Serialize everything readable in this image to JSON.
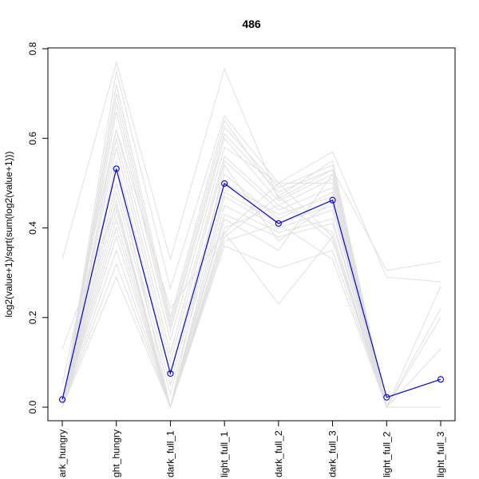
{
  "chart_data": {
    "type": "line",
    "title": "486",
    "xlabel": "",
    "ylabel": "log2(value+1)/sqrt(sum(log2(value+1)))",
    "ylim": [
      0,
      0.8
    ],
    "y_ticks": [
      0.0,
      0.2,
      0.4,
      0.6,
      0.8
    ],
    "y_tick_labels": [
      "0.0",
      "0.2",
      "0.4",
      "0.6",
      "0.8"
    ],
    "categories": [
      "dark_hungry",
      "light_hungry",
      "dark_full_1",
      "light_full_1",
      "dark_full_2",
      "dark_full_3",
      "light_full_2",
      "light_full_3"
    ],
    "category_labels_visible": [
      "ark_hungry",
      "ght_hungry",
      "dark_full_1",
      "light_full_1",
      "dark_full_2",
      "dark_full_3",
      "light_full_2",
      "light_full_3"
    ],
    "highlight_color": "#0000ff",
    "background_color": "#e0e0e0",
    "series": [
      {
        "values": [
          0.017,
          0.532,
          0.075,
          0.499,
          0.41,
          0.462,
          0.022,
          0.062
        ],
        "highlight": true
      },
      {
        "values": [
          0.33,
          0.77,
          0.33,
          0.755,
          0.465,
          0.53,
          0.305,
          0.325
        ]
      },
      {
        "values": [
          0.0,
          0.75,
          0.265,
          0.65,
          0.5,
          0.57,
          0.29,
          0.28
        ]
      },
      {
        "values": [
          0.0,
          0.72,
          0.2,
          0.64,
          0.47,
          0.55,
          0.0,
          0.22
        ]
      },
      {
        "values": [
          0.0,
          0.7,
          0.19,
          0.625,
          0.49,
          0.54,
          0.0,
          0.2
        ]
      },
      {
        "values": [
          0.0,
          0.68,
          0.18,
          0.61,
          0.48,
          0.53,
          0.0,
          0.0
        ]
      },
      {
        "values": [
          0.0,
          0.66,
          0.17,
          0.6,
          0.46,
          0.52,
          0.0,
          0.0
        ]
      },
      {
        "values": [
          0.0,
          0.62,
          0.15,
          0.58,
          0.5,
          0.5,
          0.0,
          0.0
        ]
      },
      {
        "values": [
          0.0,
          0.6,
          0.12,
          0.56,
          0.45,
          0.51,
          0.0,
          0.0
        ]
      },
      {
        "values": [
          0.0,
          0.58,
          0.1,
          0.55,
          0.44,
          0.49,
          0.0,
          0.0
        ]
      },
      {
        "values": [
          0.0,
          0.55,
          0.08,
          0.52,
          0.42,
          0.48,
          0.0,
          0.0
        ]
      },
      {
        "values": [
          0.0,
          0.5,
          0.05,
          0.5,
          0.43,
          0.47,
          0.0,
          0.0
        ]
      },
      {
        "values": [
          0.0,
          0.48,
          0.03,
          0.48,
          0.41,
          0.45,
          0.0,
          0.0
        ]
      },
      {
        "values": [
          0.0,
          0.46,
          0.0,
          0.47,
          0.4,
          0.44,
          0.0,
          0.0
        ]
      },
      {
        "values": [
          0.0,
          0.42,
          0.0,
          0.45,
          0.39,
          0.42,
          0.0,
          0.0
        ]
      },
      {
        "values": [
          0.0,
          0.4,
          0.0,
          0.43,
          0.38,
          0.41,
          0.0,
          0.0
        ]
      },
      {
        "values": [
          0.0,
          0.38,
          0.0,
          0.4,
          0.45,
          0.39,
          0.0,
          0.0
        ]
      },
      {
        "values": [
          0.0,
          0.35,
          0.0,
          0.39,
          0.23,
          0.38,
          0.0,
          0.0
        ]
      },
      {
        "values": [
          0.0,
          0.32,
          0.0,
          0.38,
          0.47,
          0.37,
          0.0,
          0.0
        ]
      },
      {
        "values": [
          0.0,
          0.29,
          0.0,
          0.36,
          0.31,
          0.35,
          0.0,
          0.0
        ]
      },
      {
        "values": [
          0.13,
          0.45,
          0.0,
          0.37,
          0.41,
          0.33,
          0.0,
          0.0
        ]
      },
      {
        "values": [
          0.05,
          0.62,
          0.22,
          0.39,
          0.5,
          0.38,
          0.0,
          0.13
        ]
      },
      {
        "values": [
          0.0,
          0.44,
          0.0,
          0.42,
          0.35,
          0.52,
          0.0,
          0.27
        ]
      },
      {
        "values": [
          0.0,
          0.53,
          0.0,
          0.54,
          0.37,
          0.46,
          0.0,
          0.0
        ]
      }
    ]
  }
}
